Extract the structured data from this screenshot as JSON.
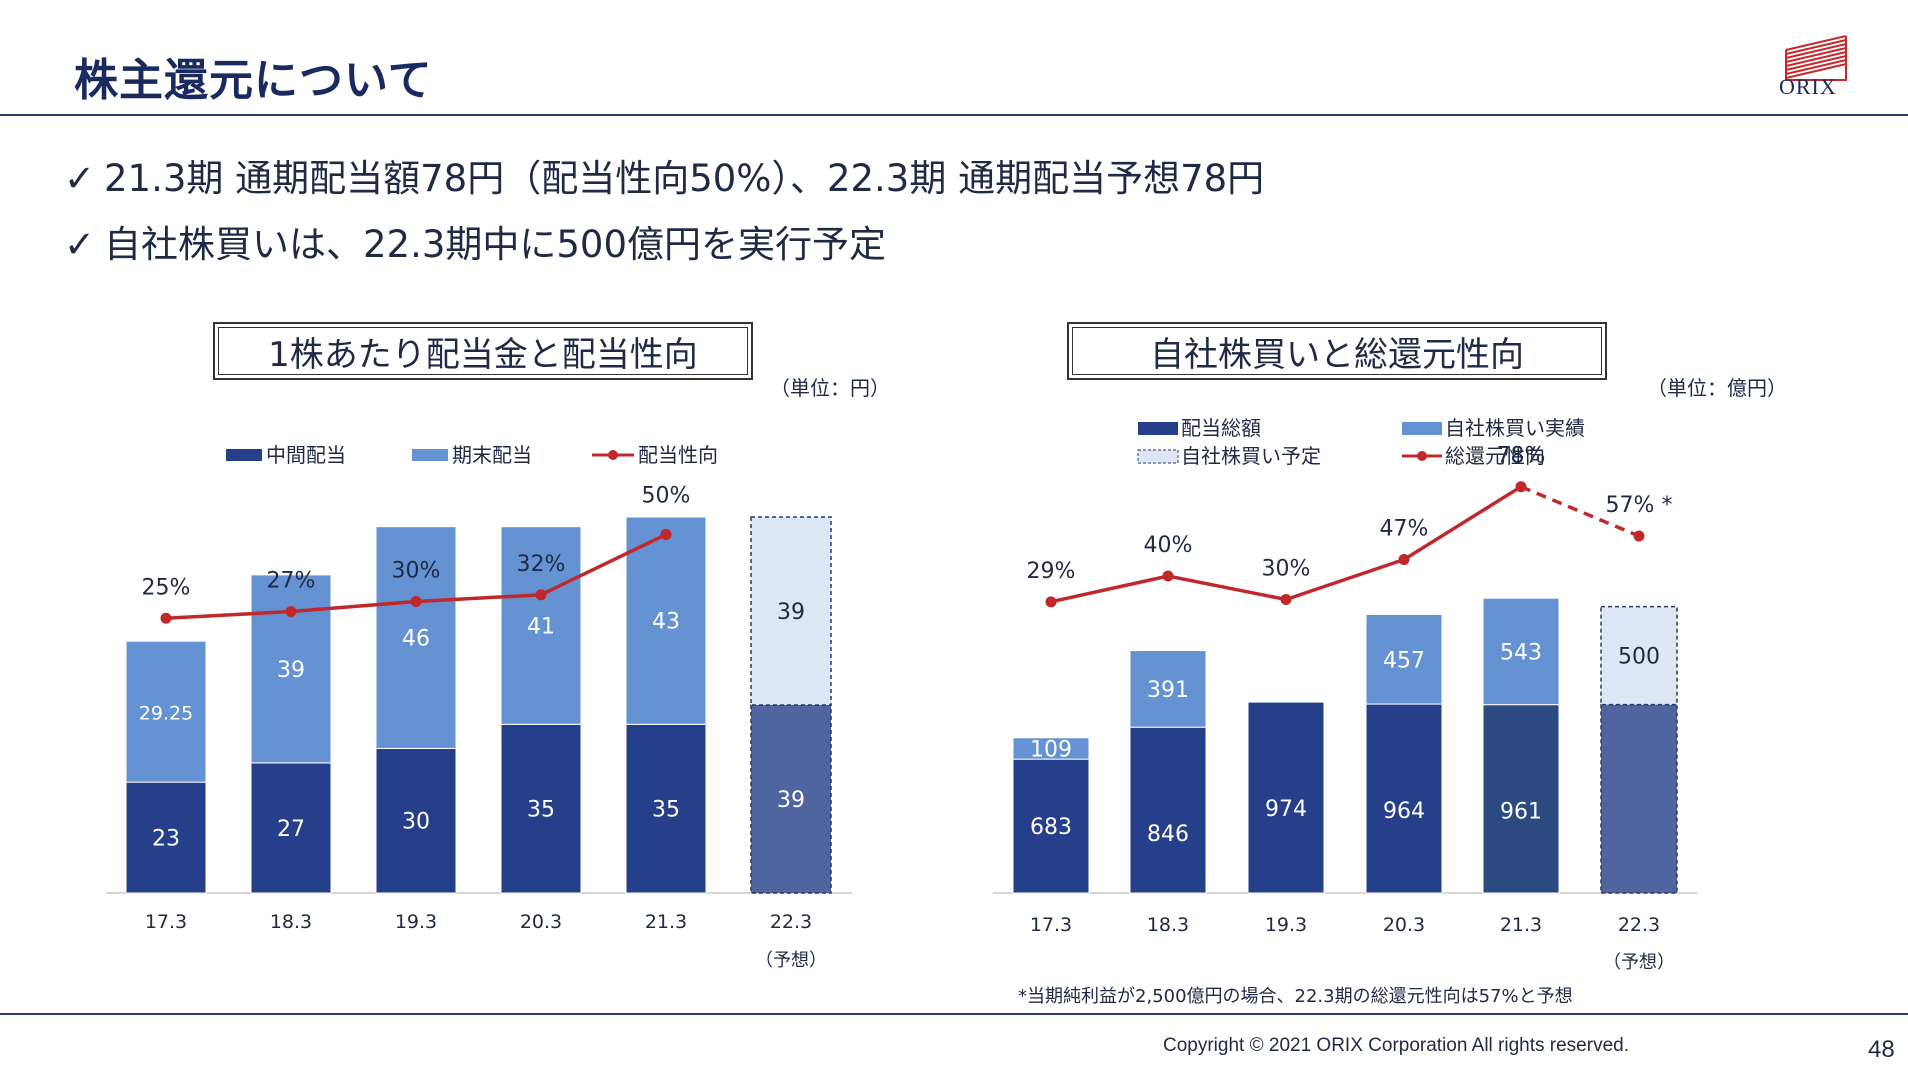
{
  "header": {
    "title": "株主還元について",
    "logo_text": "ORIX"
  },
  "bullets": [
    "21.3期  通期配当額78円（配当性向50%）、22.3期  通期配当予想78円",
    "自社株買いは、22.3期中に500億円を実行予定"
  ],
  "bullet_mark": "✓",
  "footer": {
    "footnote": "*当期純利益が2,500億円の場合、22.3期の総還元性向は57%と予想",
    "copyright": "Copyright © 2021 ORIX Corporation  All rights reserved.",
    "page_number": "48"
  },
  "colors": {
    "dark": "#263f8a",
    "light": "#6592d3",
    "forecast_dark": "#5064a0",
    "forecast_light": "#dce6f4",
    "line": "#c0282c"
  },
  "chart_data": [
    {
      "type": "bar",
      "title": "1株あたり配当金と配当性向",
      "unit_label": "（単位：円）",
      "categories": [
        "17.3",
        "18.3",
        "19.3",
        "20.3",
        "21.3",
        "22.3"
      ],
      "forecast_note": "（予想）",
      "legend": [
        "中間配当",
        "期末配当",
        "配当性向"
      ],
      "series": [
        {
          "name": "中間配当",
          "values": [
            23,
            27,
            30,
            35,
            35,
            39
          ],
          "labels": [
            "23",
            "27",
            "30",
            "35",
            "35",
            "39"
          ]
        },
        {
          "name": "期末配当",
          "values": [
            29.25,
            39,
            46,
            41,
            43,
            39
          ],
          "labels": [
            "29.25",
            "39",
            "46",
            "41",
            "43",
            "39"
          ]
        }
      ],
      "payout_ratio": {
        "name": "配当性向",
        "values": [
          25,
          27,
          30,
          32,
          50
        ],
        "labels": [
          "25%",
          "27%",
          "30%",
          "32%",
          "50%"
        ]
      }
    },
    {
      "type": "bar",
      "title": "自社株買いと総還元性向",
      "unit_label": "（単位：億円）",
      "categories": [
        "17.3",
        "18.3",
        "19.3",
        "20.3",
        "21.3",
        "22.3"
      ],
      "forecast_note": "（予想）",
      "legend": [
        "配当総額",
        "自社株買い実績",
        "自社株買い予定",
        "総還元性向"
      ],
      "series": [
        {
          "name": "配当総額",
          "values": [
            683,
            846,
            974,
            964,
            961,
            961
          ],
          "labels": [
            "683",
            "846",
            "974",
            "964",
            "961",
            ""
          ]
        },
        {
          "name": "自社株買い",
          "values": [
            109,
            391,
            0,
            457,
            543,
            500
          ],
          "labels": [
            "109",
            "391",
            "",
            "457",
            "543",
            "500"
          ]
        }
      ],
      "total_return": {
        "name": "総還元性向",
        "values": [
          29,
          40,
          30,
          47,
          78,
          57
        ],
        "labels": [
          "29%",
          "40%",
          "30%",
          "47%",
          "78%",
          "57% *"
        ]
      }
    }
  ]
}
